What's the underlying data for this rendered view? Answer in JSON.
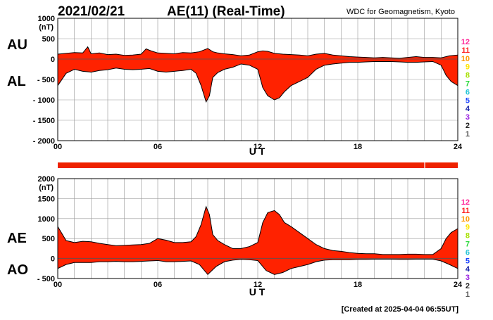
{
  "header": {
    "date": "2021/02/21",
    "title": "AE(11) (Real-Time)",
    "source": "WDC for Geomagnetism, Kyoto"
  },
  "footer": {
    "created": "[Created at 2025-04-04 06:55UT]"
  },
  "colors": {
    "fill": "#ff2200",
    "outline": "#000000",
    "grid": "#999999",
    "bar": "#ee2200",
    "station_colors": [
      "#ff2a9a",
      "#ff1f1f",
      "#ff9900",
      "#ffe600",
      "#a6e000",
      "#2bd93c",
      "#22c5d6",
      "#1a43ff",
      "#1722a8",
      "#9b22e0",
      "#222222",
      "#555555",
      "#bbbbbb"
    ]
  },
  "chart_data": [
    {
      "type": "area",
      "name": "AU/AL",
      "ylabel_unit": "(nT)",
      "side_labels": [
        "AU",
        "AL"
      ],
      "xlabel": "U T",
      "xlim": [
        0,
        24
      ],
      "ylim": [
        -2000,
        1000
      ],
      "xticks": [
        0,
        6,
        12,
        18,
        24
      ],
      "xtick_labels": [
        "00",
        "06",
        "12",
        "18",
        "24"
      ],
      "yticks": [
        1000,
        500,
        0,
        -500,
        -1000,
        -1500,
        -2000
      ],
      "ytick_labels": [
        "1000",
        "500",
        "0",
        "- 500",
        "- 1000",
        "- 1500",
        "- 2000"
      ],
      "grid": true,
      "stations": [
        "12",
        "11",
        "10",
        "9",
        "8",
        "7",
        "6",
        "5",
        "4",
        "3",
        "2",
        "1"
      ],
      "series": [
        {
          "name": "AU",
          "x": [
            0,
            0.5,
            1,
            1.5,
            1.8,
            2,
            2.5,
            3,
            3.5,
            4,
            4.5,
            5,
            5.3,
            5.6,
            6,
            6.5,
            7,
            7.5,
            8,
            8.5,
            9,
            9.3,
            9.6,
            10,
            10.5,
            11,
            11.5,
            12,
            12.3,
            12.6,
            13,
            13.5,
            14,
            14.5,
            15,
            15.5,
            16,
            16.5,
            17,
            17.5,
            18,
            18.5,
            19,
            19.5,
            20,
            20.5,
            21,
            21.5,
            22,
            22.5,
            23,
            23.5,
            24
          ],
          "values": [
            120,
            140,
            160,
            150,
            300,
            130,
            150,
            110,
            120,
            90,
            100,
            120,
            250,
            200,
            150,
            140,
            130,
            160,
            150,
            180,
            260,
            180,
            150,
            130,
            110,
            80,
            100,
            180,
            200,
            190,
            140,
            120,
            110,
            100,
            80,
            120,
            140,
            100,
            80,
            60,
            50,
            40,
            30,
            40,
            30,
            20,
            40,
            60,
            40,
            40,
            30,
            80,
            100
          ]
        },
        {
          "name": "AL",
          "x": [
            0,
            0.5,
            1,
            1.5,
            2,
            2.5,
            3,
            3.5,
            4,
            4.5,
            5,
            5.5,
            6,
            6.5,
            7,
            7.5,
            8,
            8.3,
            8.6,
            8.9,
            9.1,
            9.3,
            9.6,
            10,
            10.5,
            11,
            11.5,
            12,
            12.3,
            12.6,
            13,
            13.3,
            13.6,
            14,
            14.5,
            15,
            15.5,
            16,
            16.5,
            17,
            17.5,
            18,
            18.5,
            19,
            19.5,
            20,
            20.5,
            21,
            21.5,
            22,
            22.5,
            23,
            23.3,
            23.6,
            24
          ],
          "values": [
            -650,
            -350,
            -250,
            -300,
            -320,
            -280,
            -260,
            -220,
            -250,
            -260,
            -250,
            -230,
            -300,
            -320,
            -300,
            -280,
            -250,
            -350,
            -650,
            -1050,
            -900,
            -450,
            -330,
            -250,
            -200,
            -120,
            -150,
            -250,
            -700,
            -900,
            -1000,
            -950,
            -800,
            -650,
            -550,
            -450,
            -250,
            -150,
            -120,
            -100,
            -80,
            -80,
            -70,
            -60,
            -60,
            -60,
            -70,
            -80,
            -80,
            -70,
            -60,
            -150,
            -400,
            -550,
            -650
          ]
        }
      ]
    },
    {
      "type": "area",
      "name": "AE/AO",
      "ylabel_unit": "(nT)",
      "side_labels": [
        "AE",
        "AO"
      ],
      "xlabel": "U T",
      "xlim": [
        0,
        24
      ],
      "ylim": [
        -500,
        2000
      ],
      "xticks": [
        0,
        6,
        12,
        18,
        24
      ],
      "xtick_labels": [
        "00",
        "06",
        "12",
        "18",
        "24"
      ],
      "yticks": [
        2000,
        1500,
        1000,
        500,
        0,
        -500
      ],
      "ytick_labels": [
        "2000",
        "1500",
        "1000",
        "500",
        "0",
        "- 500"
      ],
      "grid": true,
      "stations": [
        "12",
        "11",
        "10",
        "9",
        "8",
        "7",
        "6",
        "5",
        "4",
        "3",
        "2",
        "1"
      ],
      "series": [
        {
          "name": "AE",
          "x": [
            0,
            0.5,
            1,
            1.5,
            2,
            2.5,
            3,
            3.5,
            4,
            4.5,
            5,
            5.5,
            6,
            6.5,
            7,
            7.5,
            8,
            8.3,
            8.6,
            8.9,
            9.1,
            9.3,
            9.6,
            10,
            10.5,
            11,
            11.5,
            12,
            12.3,
            12.6,
            13,
            13.3,
            13.6,
            14,
            14.5,
            15,
            15.5,
            16,
            16.5,
            17,
            17.5,
            18,
            18.5,
            19,
            19.5,
            20,
            20.5,
            21,
            21.5,
            22,
            22.5,
            23,
            23.3,
            23.6,
            24
          ],
          "values": [
            800,
            450,
            400,
            430,
            420,
            380,
            350,
            320,
            330,
            340,
            350,
            380,
            500,
            460,
            400,
            400,
            420,
            550,
            850,
            1300,
            1100,
            600,
            450,
            350,
            250,
            250,
            300,
            400,
            900,
            1150,
            1200,
            1100,
            900,
            800,
            650,
            500,
            350,
            250,
            200,
            180,
            150,
            130,
            120,
            120,
            100,
            100,
            100,
            110,
            110,
            100,
            100,
            250,
            500,
            650,
            750
          ]
        },
        {
          "name": "AO",
          "x": [
            0,
            0.5,
            1,
            1.5,
            2,
            2.5,
            3,
            3.5,
            4,
            4.5,
            5,
            5.5,
            6,
            6.5,
            7,
            7.5,
            8,
            8.5,
            9,
            9.5,
            10,
            10.5,
            11,
            11.5,
            12,
            12.5,
            13,
            13.5,
            14,
            14.5,
            15,
            15.5,
            16,
            16.5,
            17,
            17.5,
            18,
            18.5,
            19,
            19.5,
            20,
            20.5,
            21,
            21.5,
            22,
            22.5,
            23,
            23.5,
            24
          ],
          "values": [
            -250,
            -150,
            -100,
            -100,
            -100,
            -80,
            -80,
            -70,
            -80,
            -80,
            -70,
            -60,
            -50,
            -80,
            -80,
            -70,
            -60,
            -150,
            -400,
            -200,
            -80,
            -40,
            -20,
            -30,
            -50,
            -300,
            -400,
            -350,
            -250,
            -200,
            -150,
            -80,
            -40,
            -30,
            -30,
            -30,
            -20,
            -20,
            -15,
            -15,
            -15,
            -20,
            -20,
            -15,
            -15,
            -15,
            -60,
            -150,
            -250
          ]
        }
      ]
    }
  ]
}
